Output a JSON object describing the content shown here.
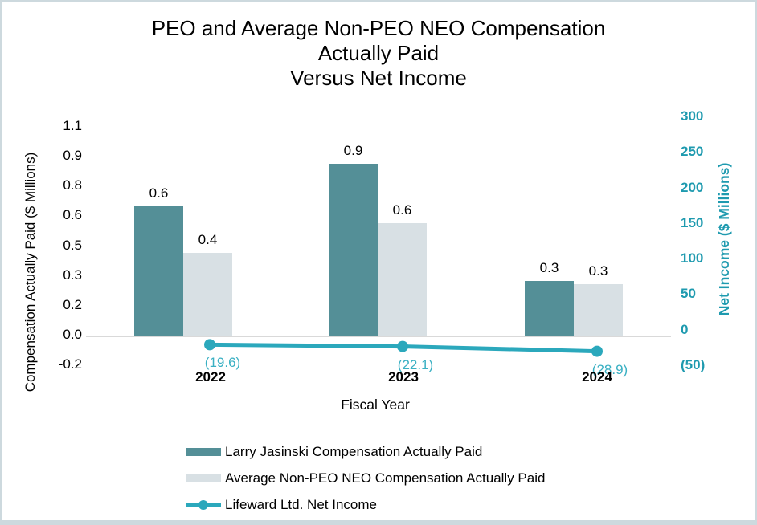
{
  "window": {
    "background": "#FFFFFF",
    "border_color": "#CDD9DE"
  },
  "title_lines": [
    "PEO and Average Non-PEO NEO Compensation",
    "Actually Paid",
    "Versus Net Income"
  ],
  "chart_data": {
    "type": "bar",
    "subtype": "combo-bar-line",
    "title": "PEO and Average Non-PEO NEO Compensation Actually Paid Versus Net Income",
    "categories": [
      "2022",
      "2023",
      "2024"
    ],
    "xlabel": "Fiscal Year",
    "grid": false,
    "legend_position": "bottom",
    "series": [
      {
        "name": "Larry Jasinski Compensation Actually Paid",
        "type": "bar",
        "axis": "left",
        "color": "#548F97",
        "values": [
          0.6,
          0.9,
          0.3
        ],
        "values_est": [
          0.7,
          0.93,
          0.3
        ],
        "labels": [
          "0.6",
          "0.9",
          "0.3"
        ]
      },
      {
        "name": "Average Non-PEO NEO Compensation Actually Paid",
        "type": "bar",
        "axis": "left",
        "color": "#D8E0E4",
        "values": [
          0.4,
          0.6,
          0.3
        ],
        "values_est": [
          0.45,
          0.61,
          0.28
        ],
        "labels": [
          "0.4",
          "0.6",
          "0.3"
        ]
      },
      {
        "name": "Lifeward Ltd. Net Income",
        "type": "line",
        "axis": "right",
        "color": "#2BA8BC",
        "label_color": "#3AB0C3",
        "values": [
          -19.6,
          -22.1,
          -28.9
        ],
        "labels": [
          "(19.6)",
          "(22.1)",
          "(28.9)"
        ]
      }
    ],
    "left_axis": {
      "title": "Compensation Actually Paid ($ Millions)",
      "tick_labels": [
        "1.1",
        "0.9",
        "0.8",
        "0.6",
        "0.5",
        "0.3",
        "0.2",
        "0.0",
        "-0.2"
      ],
      "range": [
        -0.2,
        1.1
      ],
      "color": "#000000"
    },
    "right_axis": {
      "title": "Net Income ($ Millions)",
      "tick_labels": [
        "300",
        "250",
        "200",
        "150",
        "100",
        "50",
        "0",
        "(50)"
      ],
      "range": [
        -50,
        300
      ],
      "color": "#1E9AAF"
    },
    "axis_line_color": "#D9D9D9"
  }
}
